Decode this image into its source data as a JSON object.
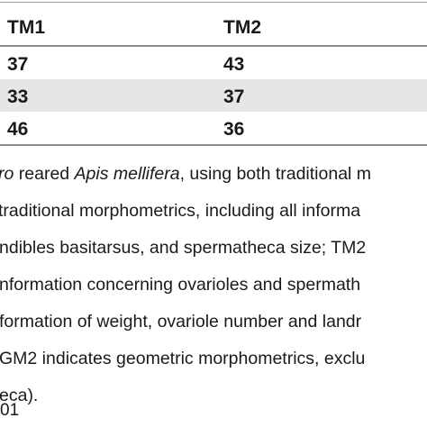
{
  "table": {
    "headers": [
      "TM1",
      "TM2"
    ],
    "rows": [
      [
        "37",
        "43"
      ],
      [
        "33",
        "37"
      ],
      [
        "46",
        "36"
      ]
    ]
  },
  "caption": {
    "line1_italic_a": "ro",
    "line1_text_b": " reared ",
    "line1_italic_c": "Apis mellifera",
    "line1_text_d": ", using both traditional m",
    "line2": " traditional morphometrics, including all informa",
    "line3": "ndibles basitarsus, and spermatheca size; TM2",
    "line4": "nformation concerning ovarioles and spermath",
    "line5": "formation of weight, ovariole number and landr",
    "line6": "GM2 indicates geometric morphometrics, exclu",
    "line7": "eca)."
  },
  "footer": {
    "text": "01"
  }
}
